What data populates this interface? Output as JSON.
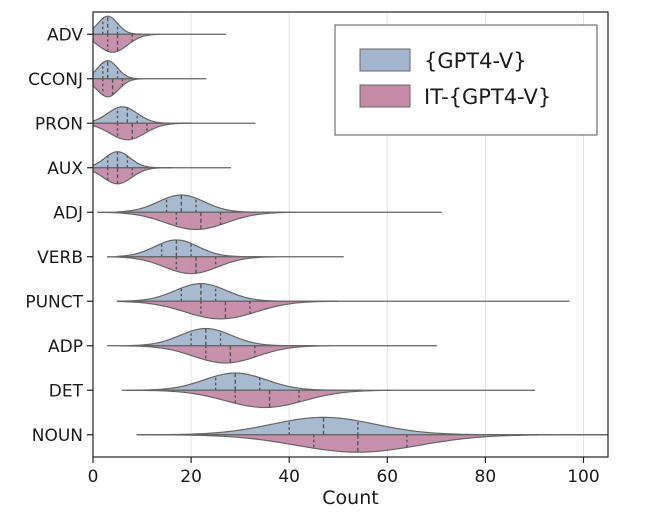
{
  "chart_data": {
    "type": "violin",
    "orientation": "horizontal",
    "split": true,
    "xlabel": "Count",
    "ylabel": "",
    "xlim": [
      0,
      105
    ],
    "xticks": [
      0,
      20,
      40,
      60,
      80,
      100
    ],
    "xgrid": true,
    "legend": {
      "placement": "top-right",
      "entries": [
        {
          "name": "{GPT4-V}",
          "color": "#a3b6cd",
          "side": "top"
        },
        {
          "name": "IT-{GPT4-V}",
          "color": "#c48aa6",
          "side": "bottom"
        }
      ]
    },
    "categories": [
      "ADV",
      "CCONJ",
      "PRON",
      "AUX",
      "ADJ",
      "VERB",
      "PUNCT",
      "ADP",
      "DET",
      "NOUN"
    ],
    "series": [
      {
        "name": "{GPT4-V}",
        "stats": [
          {
            "category": "ADV",
            "min": 0,
            "max": 10,
            "q1": 2,
            "median": 3,
            "q3": 5,
            "mode": 3,
            "peak": 0.9,
            "sigma": 2.0
          },
          {
            "category": "CCONJ",
            "min": 0,
            "max": 9,
            "q1": 2,
            "median": 3,
            "q3": 5,
            "mode": 3,
            "peak": 0.9,
            "sigma": 2.0
          },
          {
            "category": "PRON",
            "min": 0,
            "max": 20,
            "q1": 5,
            "median": 7,
            "q3": 9,
            "mode": 6,
            "peak": 0.82,
            "sigma": 3.0
          },
          {
            "category": "AUX",
            "min": 0,
            "max": 16,
            "q1": 3,
            "median": 5,
            "q3": 7,
            "mode": 5,
            "peak": 0.8,
            "sigma": 2.6
          },
          {
            "category": "ADJ",
            "min": 5,
            "max": 40,
            "q1": 15,
            "median": 18,
            "q3": 21,
            "mode": 18,
            "peak": 0.86,
            "sigma": 4.7
          },
          {
            "category": "VERB",
            "min": 5,
            "max": 35,
            "q1": 14,
            "median": 17,
            "q3": 20,
            "mode": 17,
            "peak": 0.84,
            "sigma": 4.4
          },
          {
            "category": "PUNCT",
            "min": 5,
            "max": 50,
            "q1": 18,
            "median": 22,
            "q3": 25,
            "mode": 22,
            "peak": 0.88,
            "sigma": 5.2
          },
          {
            "category": "ADP",
            "min": 7,
            "max": 45,
            "q1": 20,
            "median": 23,
            "q3": 26,
            "mode": 23,
            "peak": 0.86,
            "sigma": 5.2
          },
          {
            "category": "DET",
            "min": 7,
            "max": 55,
            "q1": 25,
            "median": 29,
            "q3": 34,
            "mode": 29,
            "peak": 0.86,
            "sigma": 6.3
          },
          {
            "category": "NOUN",
            "min": 9,
            "max": 105,
            "q1": 40,
            "median": 47,
            "q3": 54,
            "mode": 47,
            "peak": 0.87,
            "sigma": 10.5
          }
        ]
      },
      {
        "name": "IT-{GPT4-V}",
        "stats": [
          {
            "category": "ADV",
            "min": 0,
            "max": 27,
            "q1": 3,
            "median": 5,
            "q3": 8,
            "mode": 4,
            "peak": 0.9,
            "sigma": 3.0
          },
          {
            "category": "CCONJ",
            "min": 0,
            "max": 23,
            "q1": 2,
            "median": 4,
            "q3": 6,
            "mode": 3,
            "peak": 0.9,
            "sigma": 2.2
          },
          {
            "category": "PRON",
            "min": 0,
            "max": 33,
            "q1": 5,
            "median": 8,
            "q3": 11,
            "mode": 7,
            "peak": 0.82,
            "sigma": 3.6
          },
          {
            "category": "AUX",
            "min": 0,
            "max": 28,
            "q1": 3,
            "median": 5,
            "q3": 8,
            "mode": 5,
            "peak": 0.8,
            "sigma": 2.9
          },
          {
            "category": "ADJ",
            "min": 1,
            "max": 71,
            "q1": 17,
            "median": 22,
            "q3": 26,
            "mode": 21,
            "peak": 0.86,
            "sigma": 6.2
          },
          {
            "category": "VERB",
            "min": 3,
            "max": 51,
            "q1": 17,
            "median": 21,
            "q3": 25,
            "mode": 20,
            "peak": 0.84,
            "sigma": 5.4
          },
          {
            "category": "PUNCT",
            "min": 5,
            "max": 97,
            "q1": 22,
            "median": 27,
            "q3": 32,
            "mode": 26,
            "peak": 0.88,
            "sigma": 7.2
          },
          {
            "category": "ADP",
            "min": 3,
            "max": 70,
            "q1": 23,
            "median": 28,
            "q3": 33,
            "mode": 27,
            "peak": 0.86,
            "sigma": 6.5
          },
          {
            "category": "DET",
            "min": 6,
            "max": 90,
            "q1": 29,
            "median": 36,
            "q3": 42,
            "mode": 35,
            "peak": 0.86,
            "sigma": 8.0
          },
          {
            "category": "NOUN",
            "min": 9,
            "max": 105,
            "q1": 45,
            "median": 54,
            "q3": 64,
            "mode": 54,
            "peak": 0.87,
            "sigma": 12.5
          }
        ]
      }
    ]
  }
}
